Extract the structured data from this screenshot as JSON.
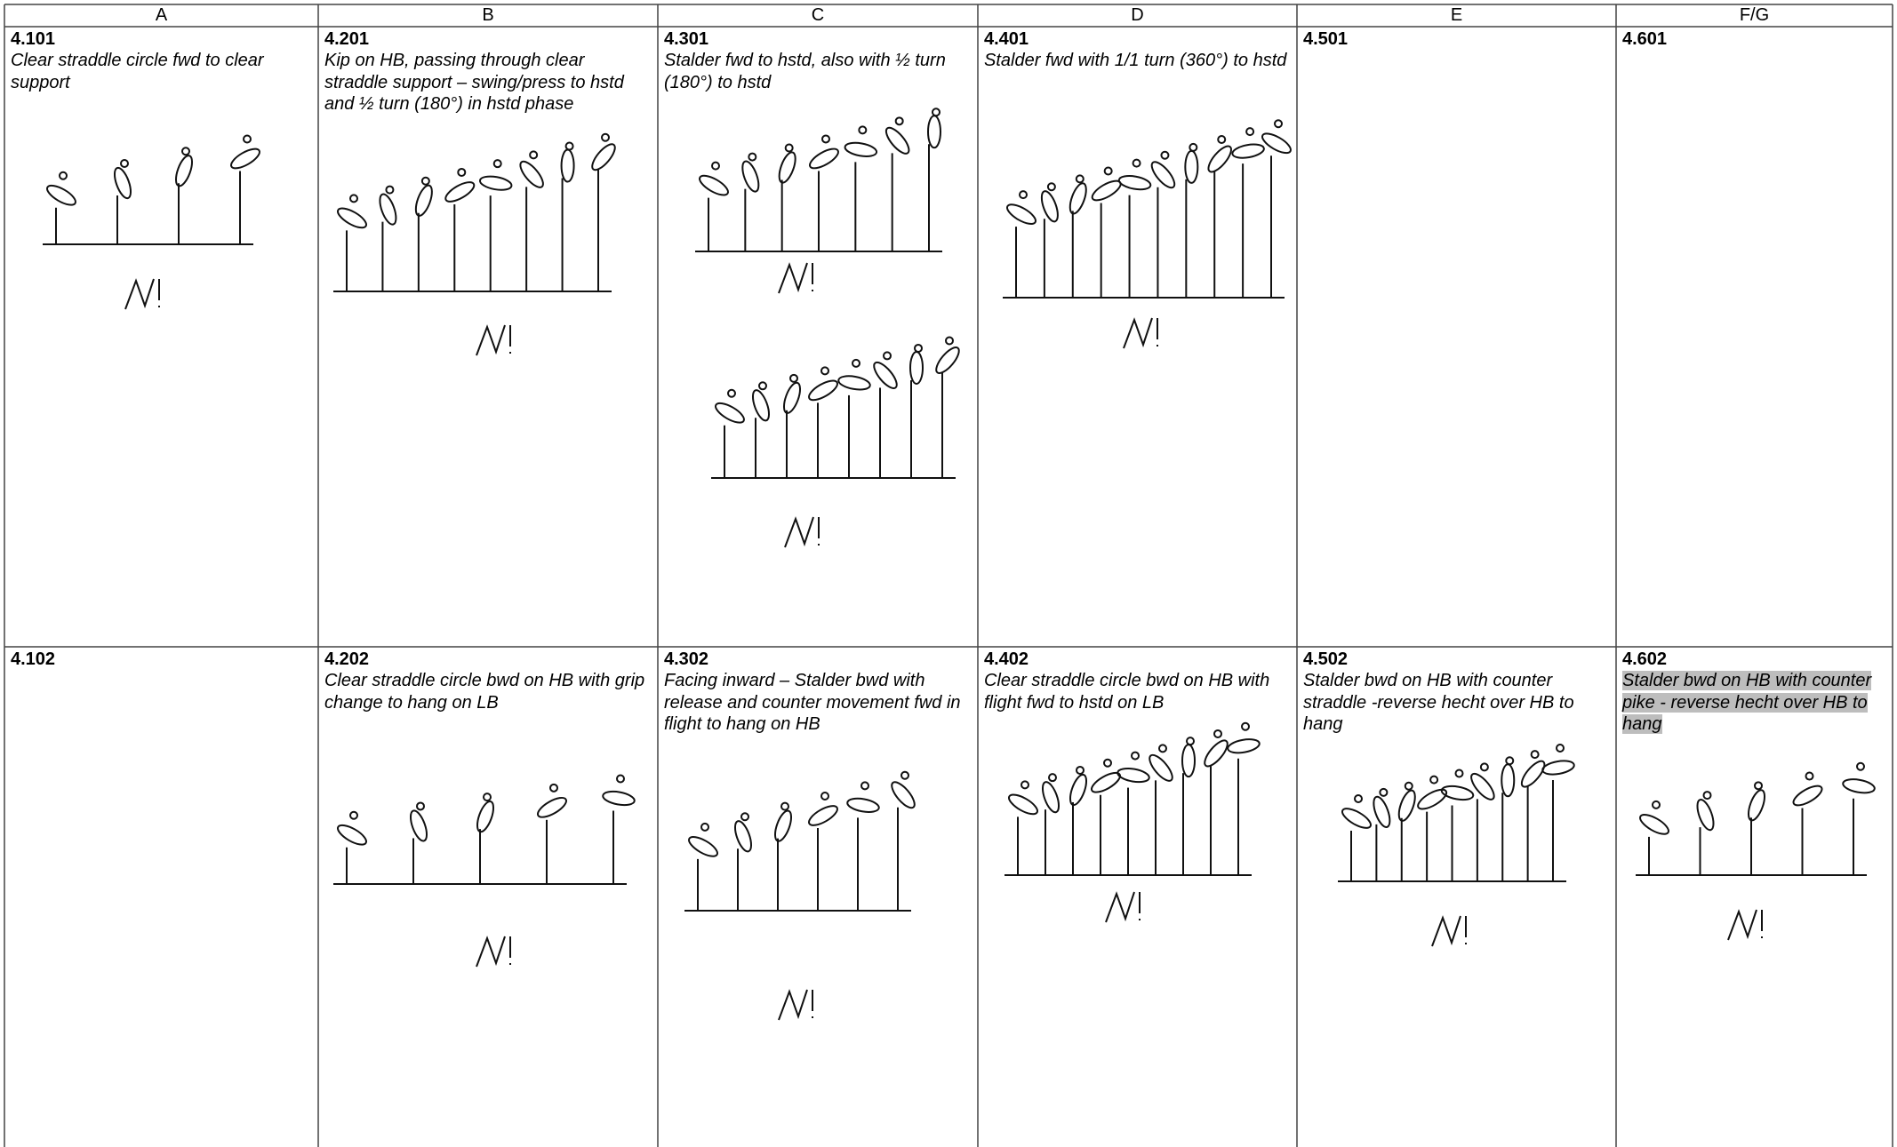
{
  "table": {
    "headers": [
      "A",
      "B",
      "C",
      "D",
      "E",
      "F/G"
    ],
    "rows": [
      [
        {
          "code": "4.101",
          "description": "Clear straddle circle fwd to clear support"
        },
        {
          "code": "4.201",
          "description": "Kip on HB, passing through clear straddle support – swing/press to hstd and ½ turn (180°) in hstd phase"
        },
        {
          "code": "4.301",
          "description": "Stalder fwd to hstd, also with ½ turn (180°) to  hstd"
        },
        {
          "code": "4.401",
          "description": "Stalder fwd with 1/1 turn (360°) to hstd"
        },
        {
          "code": "4.501"
        },
        {
          "code": "4.601"
        }
      ],
      [
        {
          "code": "4.102"
        },
        {
          "code": "4.202",
          "description": "Clear straddle circle bwd on HB with grip change to hang on LB"
        },
        {
          "code": "4.302",
          "description": "Facing inward – Stalder bwd with release and counter movement fwd in flight to hang on HB"
        },
        {
          "code": "4.402",
          "description": "Clear straddle circle bwd on HB with flight fwd to hstd on LB"
        },
        {
          "code": "4.502",
          "description": "Stalder bwd on HB with counter straddle -reverse hecht over HB to hang"
        },
        {
          "code": "4.602",
          "description": "Stalder bwd on HB with counter pike - reverse hecht over HB to hang"
        }
      ]
    ]
  }
}
